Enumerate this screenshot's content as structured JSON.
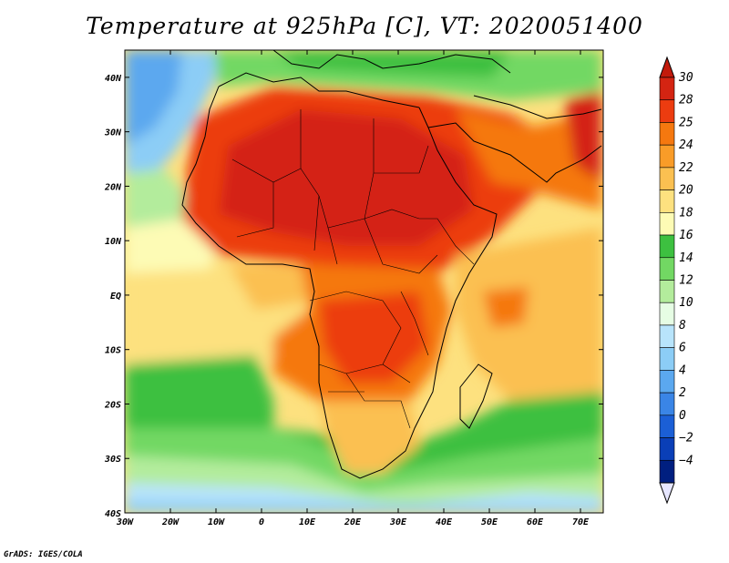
{
  "title": "Temperature at 925hPa [C], VT: 2020051400",
  "credit": "GrADS: IGES/COLA",
  "map": {
    "lon_range": [
      -30,
      75
    ],
    "lat_range": [
      -40,
      45
    ],
    "lon_ticks": [
      {
        "v": -30,
        "label": "30W"
      },
      {
        "v": -20,
        "label": "20W"
      },
      {
        "v": -10,
        "label": "10W"
      },
      {
        "v": 0,
        "label": "0"
      },
      {
        "v": 10,
        "label": "10E"
      },
      {
        "v": 20,
        "label": "20E"
      },
      {
        "v": 30,
        "label": "30E"
      },
      {
        "v": 40,
        "label": "40E"
      },
      {
        "v": 50,
        "label": "50E"
      },
      {
        "v": 60,
        "label": "60E"
      },
      {
        "v": 70,
        "label": "70E"
      }
    ],
    "lat_ticks": [
      {
        "v": 40,
        "label": "40N"
      },
      {
        "v": 30,
        "label": "30N"
      },
      {
        "v": 20,
        "label": "20N"
      },
      {
        "v": 10,
        "label": "10N"
      },
      {
        "v": 0,
        "label": "EQ"
      },
      {
        "v": -10,
        "label": "10S"
      },
      {
        "v": -20,
        "label": "20S"
      },
      {
        "v": -30,
        "label": "30S"
      },
      {
        "v": -40,
        "label": "40S"
      }
    ]
  },
  "colorbar": {
    "levels": [
      {
        "label": "30",
        "color": "#d42412"
      },
      {
        "label": "28",
        "color": "#ec3c10"
      },
      {
        "label": "25",
        "color": "#f5780f"
      },
      {
        "label": "24",
        "color": "#f99c28"
      },
      {
        "label": "22",
        "color": "#fbc051"
      },
      {
        "label": "20",
        "color": "#fde17f"
      },
      {
        "label": "18",
        "color": "#fdfbb5"
      },
      {
        "label": "16",
        "color": "#3dc040"
      },
      {
        "label": "14",
        "color": "#72d863"
      },
      {
        "label": "12",
        "color": "#b3ec9c"
      },
      {
        "label": "10",
        "color": "#e6fde4"
      },
      {
        "label": "8",
        "color": "#b8e4fb"
      },
      {
        "label": "6",
        "color": "#8ccdf6"
      },
      {
        "label": "4",
        "color": "#5ba8ef"
      },
      {
        "label": "2",
        "color": "#3a85e6"
      },
      {
        "label": "0",
        "color": "#1b5fd6"
      },
      {
        "label": "−2",
        "color": "#0a3fb7"
      },
      {
        "label": "−4",
        "color": "#001f80"
      }
    ],
    "top_color": "#c21a0c",
    "bottom_color": "#e6e6ff"
  }
}
